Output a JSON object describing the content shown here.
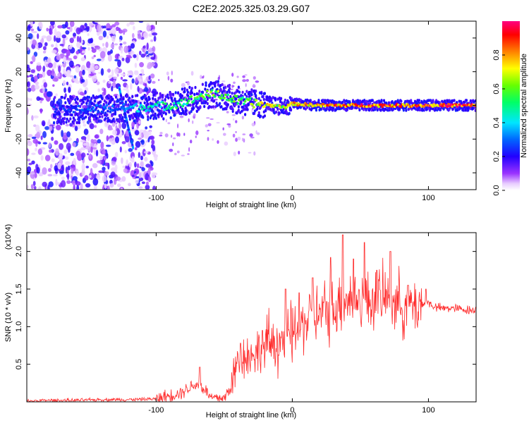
{
  "figure_title": "C2E2.2025.325.03.29.G07",
  "chart_data": [
    {
      "type": "heatmap",
      "title": "C2E2.2025.325.03.29.G07",
      "xlabel": "Height of straight line (km)",
      "ylabel": "Frequency (Hz)",
      "xlim": [
        -195,
        135
      ],
      "ylim": [
        -50,
        50
      ],
      "xticks": [
        -100,
        0,
        100
      ],
      "yticks": [
        -40,
        -20,
        0,
        20,
        40
      ],
      "colorbar": {
        "label": "Normalized spectral amplitude",
        "range": [
          0.0,
          1.0
        ],
        "ticks": [
          0.0,
          0.2,
          0.4,
          0.6,
          0.8
        ],
        "colormap": [
          "#ffffff",
          "#7b00ff",
          "#0000ff",
          "#00ffff",
          "#00ff00",
          "#ffff00",
          "#ff8000",
          "#ff0000",
          "#ff00ff"
        ]
      },
      "ridge": {
        "x": [
          -170,
          -150,
          -130,
          -110,
          -90,
          -75,
          -65,
          -55,
          -45,
          -35,
          -25,
          -15,
          -5,
          0,
          20,
          50,
          80,
          110,
          135
        ],
        "frequency": [
          -3,
          -2,
          -2,
          -1,
          0,
          3,
          6,
          7,
          4,
          2,
          1,
          0,
          -1,
          1,
          0,
          0,
          0,
          0,
          0
        ],
        "amplitude": [
          0.25,
          0.3,
          0.3,
          0.45,
          0.5,
          0.55,
          0.6,
          0.65,
          0.6,
          0.6,
          0.7,
          0.75,
          0.7,
          0.8,
          0.85,
          0.9,
          0.9,
          0.92,
          0.95
        ]
      }
    },
    {
      "type": "line",
      "xlabel": "Height of straight line (km)",
      "ylabel": "SNR (10 * v/v)",
      "y_multiplier": "(x10^4)",
      "xlim": [
        -195,
        135
      ],
      "ylim": [
        0.0,
        2.25
      ],
      "xticks": [
        -100,
        0,
        100
      ],
      "yticks": [
        0.5,
        1.0,
        1.5,
        2.0
      ],
      "color": "#ff2020",
      "series": [
        {
          "name": "SNR",
          "x": [
            -195,
            -180,
            -160,
            -140,
            -120,
            -100,
            -90,
            -80,
            -75,
            -70,
            -65,
            -60,
            -55,
            -50,
            -45,
            -42,
            -40,
            -38,
            -35,
            -30,
            -25,
            -20,
            -15,
            -10,
            -5,
            0,
            5,
            10,
            15,
            20,
            25,
            30,
            35,
            40,
            45,
            50,
            55,
            60,
            65,
            70,
            75,
            80,
            85,
            90,
            95,
            100,
            105,
            110,
            115,
            120,
            125,
            130,
            135
          ],
          "y": [
            0.01,
            0.02,
            0.02,
            0.03,
            0.03,
            0.04,
            0.08,
            0.14,
            0.2,
            0.24,
            0.18,
            0.06,
            0.05,
            0.05,
            0.2,
            0.4,
            0.55,
            0.62,
            0.6,
            0.62,
            0.68,
            0.72,
            0.8,
            0.8,
            0.86,
            0.9,
            1.0,
            1.08,
            1.12,
            1.15,
            1.2,
            1.25,
            1.32,
            1.38,
            1.35,
            1.38,
            1.32,
            1.38,
            1.36,
            1.4,
            1.34,
            1.3,
            1.26,
            1.28,
            1.3,
            1.32,
            1.26,
            1.24,
            1.25,
            1.24,
            1.23,
            1.22,
            1.22
          ],
          "peaks": [
            [
              -68,
              0.46
            ],
            [
              -38,
              0.78
            ],
            [
              -22,
              0.95
            ],
            [
              -5,
              1.5
            ],
            [
              5,
              1.45
            ],
            [
              15,
              1.65
            ],
            [
              28,
              1.92
            ],
            [
              37,
              2.22
            ],
            [
              45,
              1.9
            ],
            [
              53,
              2.12
            ],
            [
              62,
              1.75
            ],
            [
              72,
              2.0
            ],
            [
              85,
              1.55
            ],
            [
              98,
              1.5
            ]
          ]
        }
      ]
    }
  ]
}
